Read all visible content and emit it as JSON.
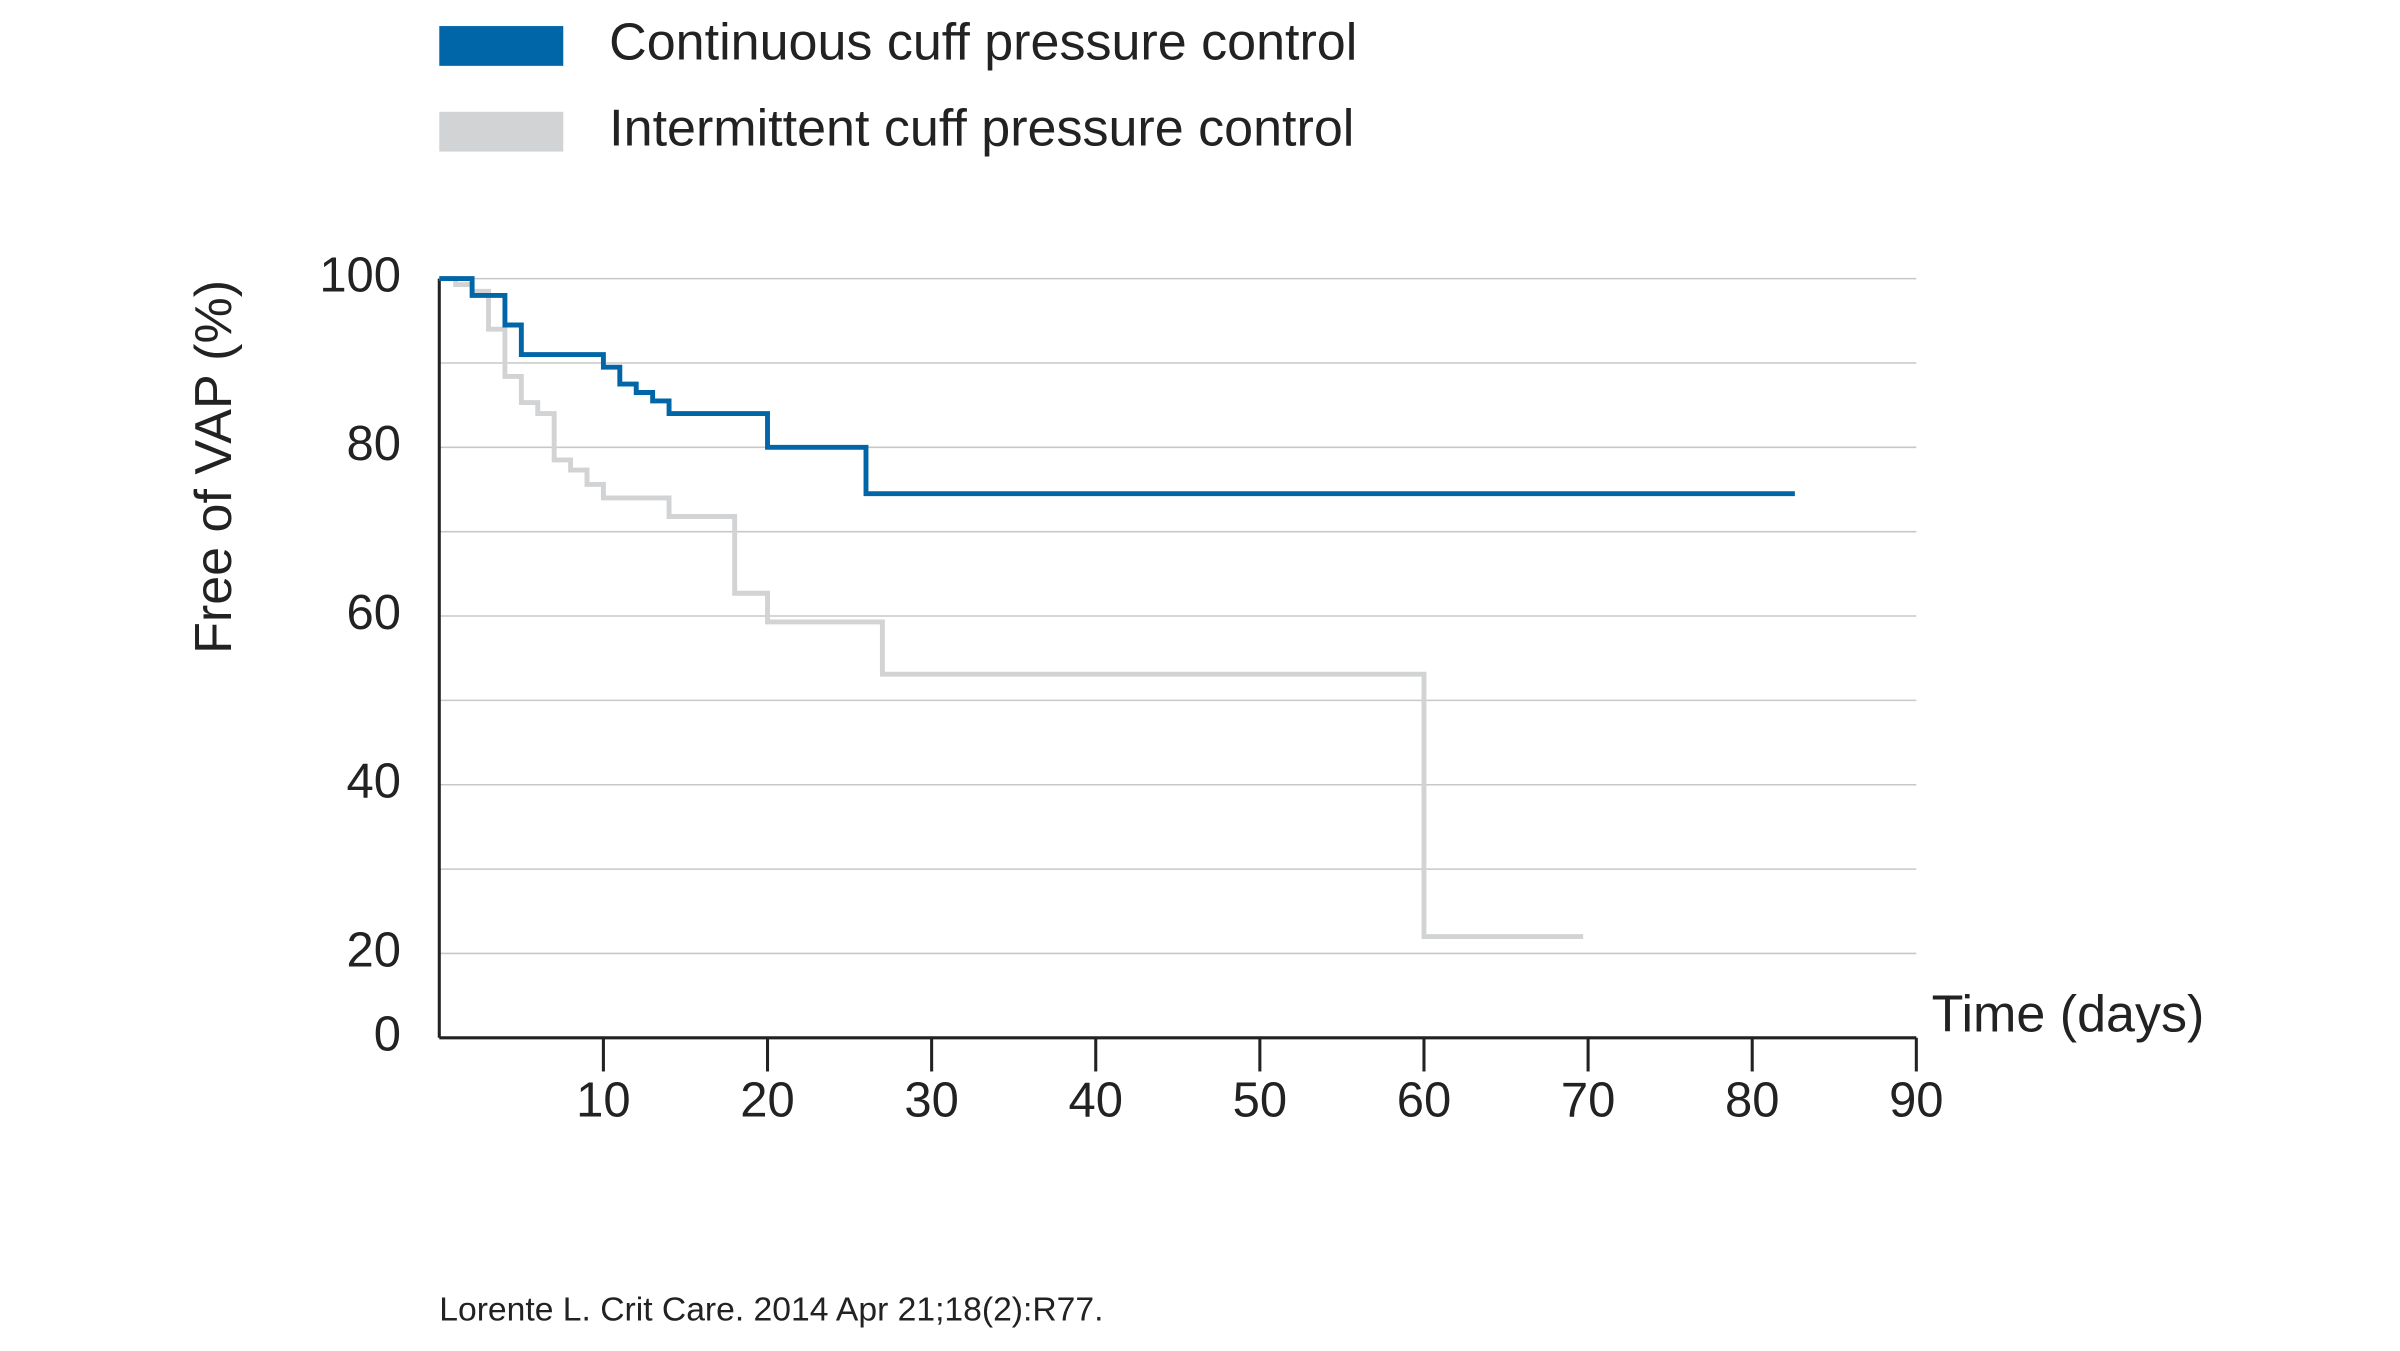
{
  "chart_data": {
    "type": "line",
    "step": "post",
    "y_label": "Free of VAP (%)",
    "x_label": "Time (days)",
    "origin_label": "0",
    "source": "Lorente L. Crit Care. 2014 Apr 21;18(2):R77.",
    "xlim": [
      0,
      90
    ],
    "xticks": [
      10,
      20,
      30,
      40,
      50,
      60,
      70,
      80,
      90
    ],
    "ylim": [
      10,
      100
    ],
    "yticks": [
      20,
      40,
      60,
      80,
      100
    ],
    "ygrid": [
      20,
      30,
      40,
      50,
      60,
      70,
      80,
      90,
      100
    ],
    "grid": true,
    "legend": "top-left",
    "series": [
      {
        "name": "Continuous cuff pressure control",
        "color": "#0066a8",
        "x": [
          0,
          2,
          4,
          5,
          10,
          11,
          12,
          13,
          14,
          20,
          26,
          82.6
        ],
        "values": [
          100,
          98,
          94.5,
          91,
          89.5,
          87.5,
          86.5,
          85.5,
          84,
          80,
          74.5,
          74.5
        ]
      },
      {
        "name": "Intermittent cuff pressure control",
        "color": "#d1d3d4",
        "x": [
          0,
          1,
          2,
          3,
          4,
          5,
          6,
          7,
          8,
          9,
          10,
          14,
          18,
          20,
          27,
          60,
          69.7
        ],
        "values": [
          100,
          99.3,
          98.5,
          94,
          88.4,
          85.3,
          84,
          78.5,
          77.3,
          75.6,
          74,
          71.8,
          62.7,
          59.3,
          53.1,
          22,
          22
        ]
      }
    ]
  }
}
